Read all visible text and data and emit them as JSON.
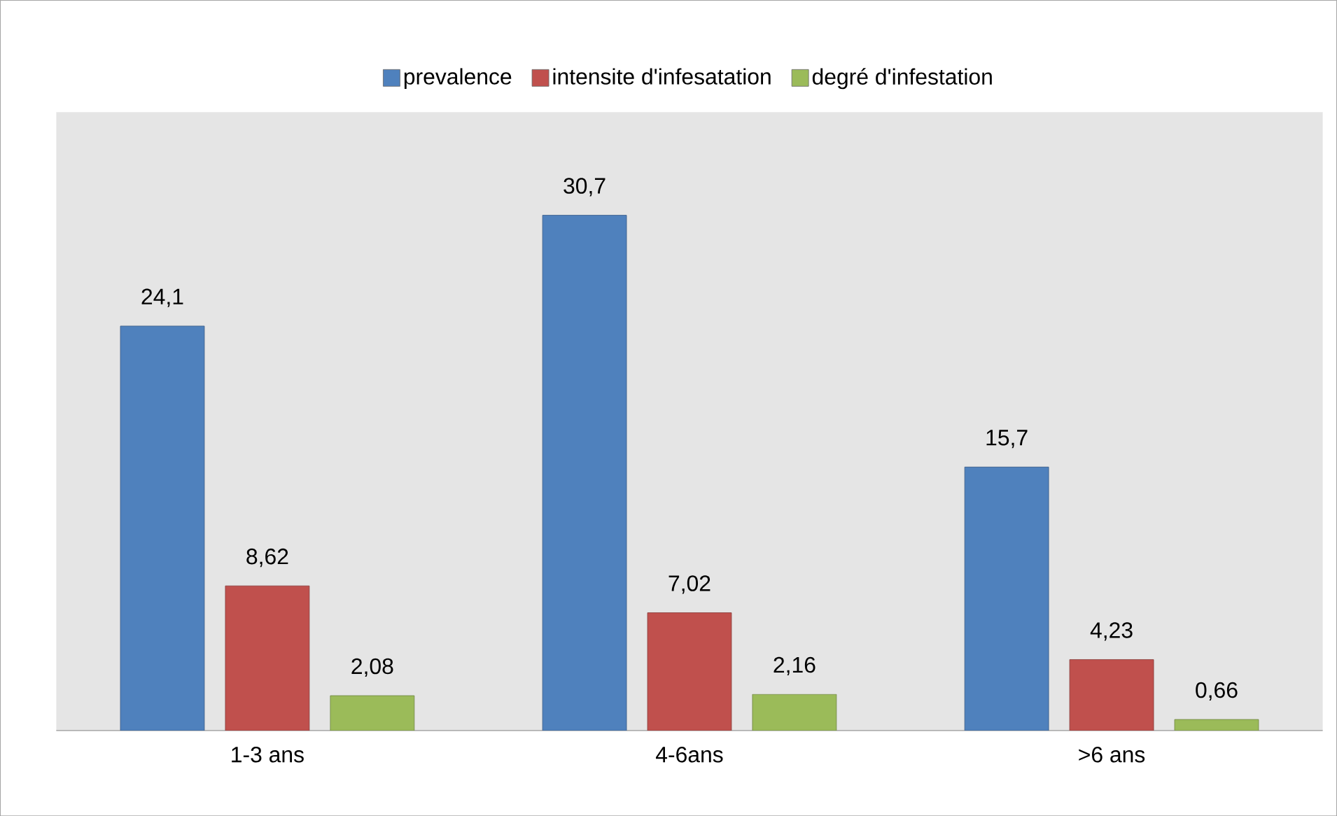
{
  "chart_data": {
    "type": "bar",
    "categories": [
      "1-3 ans",
      "4-6ans",
      ">6 ans"
    ],
    "series": [
      {
        "name": "prevalence",
        "color": "#4f81bd",
        "values": [
          24.1,
          30.7,
          15.7
        ],
        "value_labels": [
          "24,1",
          "30,7",
          "15,7"
        ]
      },
      {
        "name": "intensite d'infesatation",
        "color": "#c0504d",
        "values": [
          8.62,
          7.02,
          4.23
        ],
        "value_labels": [
          "8,62",
          "7,02",
          "4,23"
        ]
      },
      {
        "name": "degré d'infestation",
        "color": "#9bbb59",
        "values": [
          2.08,
          2.16,
          0.66
        ],
        "value_labels": [
          "2,08",
          "2,16",
          "0,66"
        ]
      }
    ],
    "legend": "top"
  }
}
